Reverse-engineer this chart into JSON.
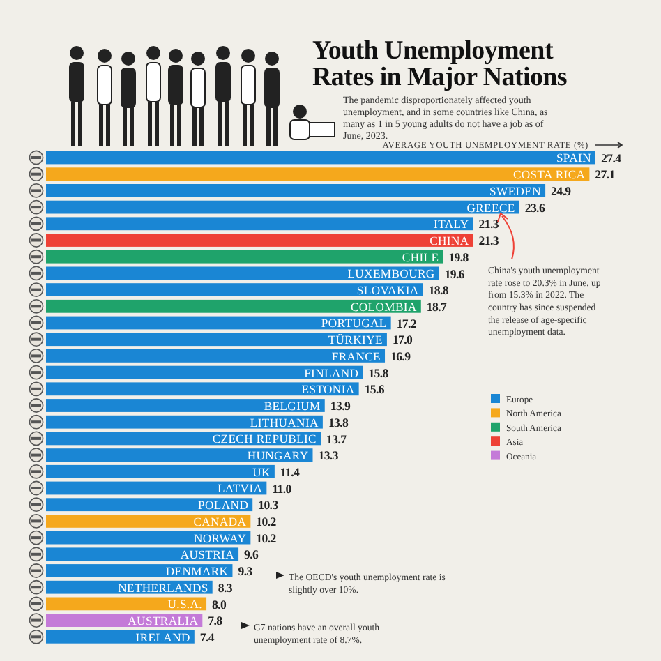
{
  "chart_data": {
    "type": "bar",
    "orientation": "horizontal",
    "title": "Youth Unemployment Rates in Major Nations",
    "subtitle": "The pandemic disproportionately affected youth unemployment, and in some countries like China, as many as 1 in 5 young adults do not have a job as of June, 2023.",
    "xlabel": "AVERAGE YOUTH UNEMPLOYMENT RATE (%)",
    "categories": [
      "SPAIN",
      "COSTA RICA",
      "SWEDEN",
      "GREECE",
      "ITALY",
      "CHINA",
      "CHILE",
      "LUXEMBOURG",
      "SLOVAKIA",
      "COLOMBIA",
      "PORTUGAL",
      "TÜRKIYE",
      "FRANCE",
      "FINLAND",
      "ESTONIA",
      "BELGIUM",
      "LITHUANIA",
      "CZECH REPUBLIC",
      "HUNGARY",
      "UK",
      "LATVIA",
      "POLAND",
      "CANADA",
      "NORWAY",
      "AUSTRIA",
      "DENMARK",
      "NETHERLANDS",
      "U.S.A.",
      "AUSTRALIA",
      "IRELAND"
    ],
    "series": [
      {
        "name": "Europe",
        "color": "#1a86d4",
        "values": [
          27.4,
          null,
          24.9,
          23.6,
          21.3,
          null,
          null,
          19.6,
          18.8,
          null,
          17.2,
          17.0,
          16.9,
          15.8,
          15.6,
          13.9,
          13.8,
          13.7,
          13.3,
          11.4,
          11.0,
          10.3,
          null,
          10.2,
          9.6,
          9.3,
          8.3,
          null,
          null,
          7.4
        ],
        "value_labels": [
          "27.4",
          null,
          "24.9",
          "23.6",
          "21.3",
          null,
          null,
          "19.6",
          "18.8",
          null,
          "17.2",
          "17.0",
          "16.9",
          "15.8",
          "15.6",
          "13.9",
          "13.8",
          "13.7",
          "13.3",
          "11.4",
          "11.0",
          "10.3",
          null,
          "10.2",
          "9.6",
          "9.3",
          "8.3",
          null,
          null,
          "7.4"
        ]
      },
      {
        "name": "North America",
        "color": "#f5a81c",
        "values": [
          null,
          27.1,
          null,
          null,
          null,
          null,
          null,
          null,
          null,
          null,
          null,
          null,
          null,
          null,
          null,
          null,
          null,
          null,
          null,
          null,
          null,
          null,
          10.2,
          null,
          null,
          null,
          null,
          8.0,
          null,
          null
        ],
        "value_labels": [
          null,
          "27.1",
          null,
          null,
          null,
          null,
          null,
          null,
          null,
          null,
          null,
          null,
          null,
          null,
          null,
          null,
          null,
          null,
          null,
          null,
          null,
          null,
          "10.2",
          null,
          null,
          null,
          null,
          "8.0",
          null,
          null
        ]
      },
      {
        "name": "South America",
        "color": "#1fa36b",
        "values": [
          null,
          null,
          null,
          null,
          null,
          null,
          19.8,
          null,
          null,
          18.7,
          null,
          null,
          null,
          null,
          null,
          null,
          null,
          null,
          null,
          null,
          null,
          null,
          null,
          null,
          null,
          null,
          null,
          null,
          null,
          null
        ],
        "value_labels": [
          null,
          null,
          null,
          null,
          null,
          null,
          "19.8",
          null,
          null,
          "18.7",
          null,
          null,
          null,
          null,
          null,
          null,
          null,
          null,
          null,
          null,
          null,
          null,
          null,
          null,
          null,
          null,
          null,
          null,
          null,
          null
        ]
      },
      {
        "name": "Asia",
        "color": "#ee4136",
        "values": [
          null,
          null,
          null,
          null,
          null,
          21.3,
          null,
          null,
          null,
          null,
          null,
          null,
          null,
          null,
          null,
          null,
          null,
          null,
          null,
          null,
          null,
          null,
          null,
          null,
          null,
          null,
          null,
          null,
          null,
          null
        ],
        "value_labels": [
          null,
          null,
          null,
          null,
          null,
          "21.3",
          null,
          null,
          null,
          null,
          null,
          null,
          null,
          null,
          null,
          null,
          null,
          null,
          null,
          null,
          null,
          null,
          null,
          null,
          null,
          null,
          null,
          null,
          null,
          null
        ]
      },
      {
        "name": "Oceania",
        "color": "#c47ad8",
        "values": [
          null,
          null,
          null,
          null,
          null,
          null,
          null,
          null,
          null,
          null,
          null,
          null,
          null,
          null,
          null,
          null,
          null,
          null,
          null,
          null,
          null,
          null,
          null,
          null,
          null,
          null,
          null,
          null,
          7.8,
          null
        ],
        "value_labels": [
          null,
          null,
          null,
          null,
          null,
          null,
          null,
          null,
          null,
          null,
          null,
          null,
          null,
          null,
          null,
          null,
          null,
          null,
          null,
          null,
          null,
          null,
          null,
          null,
          null,
          null,
          null,
          null,
          "7.8",
          null
        ]
      }
    ],
    "legend": "right",
    "annotations": [
      "China's youth unemployment rate rose to 20.3% in June, up from 15.3% in 2022. The country has since suspended the release of age-specific unemployment data.",
      "The OECD's youth unemployment rate is slightly over 10%.",
      "G7 nations have an overall youth unemployment rate of 8.7%."
    ]
  }
}
